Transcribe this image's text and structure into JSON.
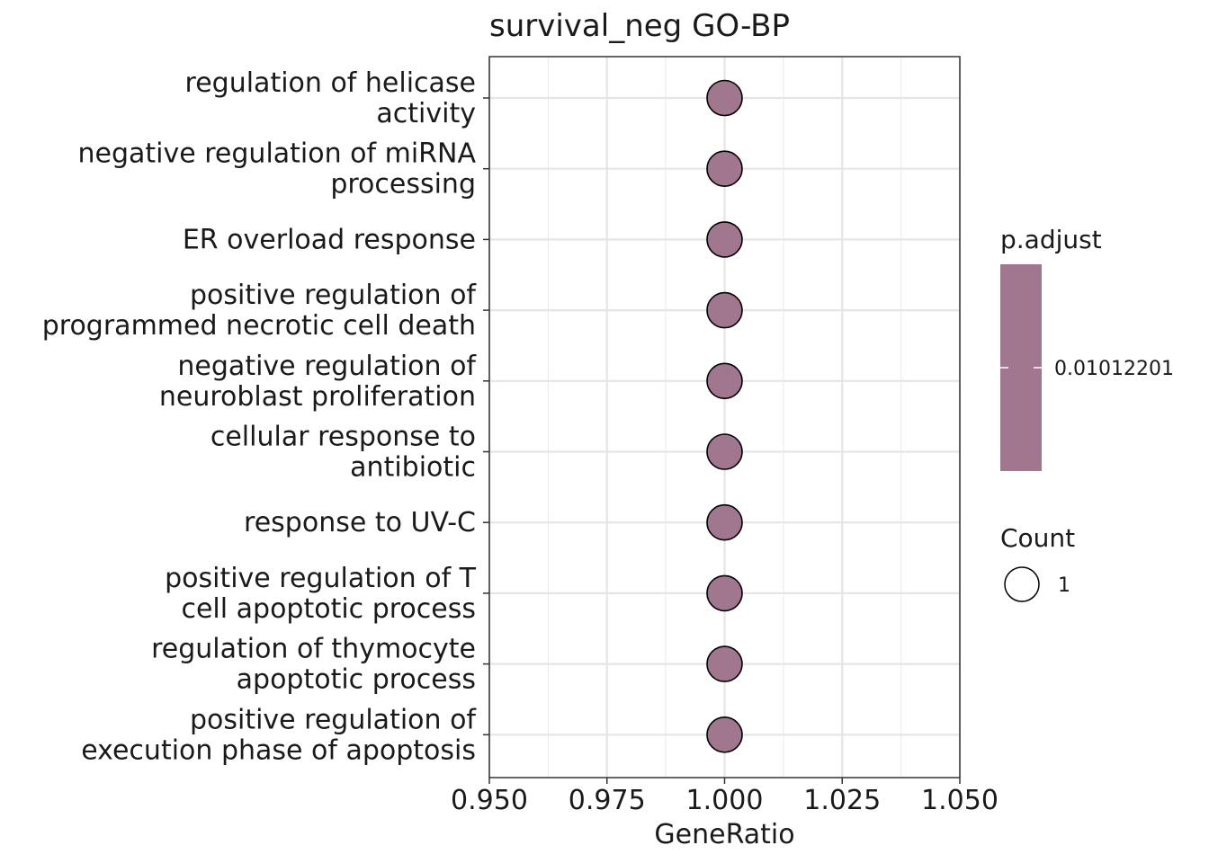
{
  "chart_data": {
    "type": "scatter",
    "title": "survival_neg GO-BP",
    "xlabel": "GeneRatio",
    "ylabel": "",
    "xlim": [
      0.95,
      1.05
    ],
    "x_ticks": [
      0.95,
      0.975,
      1.0,
      1.025,
      1.05
    ],
    "x_tick_labels": [
      "0.950",
      "0.975",
      "1.000",
      "1.025",
      "1.050"
    ],
    "grid": true,
    "legend_position": "right",
    "categories": [
      [
        "regulation of helicase",
        "activity"
      ],
      [
        "negative regulation of miRNA",
        "processing"
      ],
      [
        "ER overload response"
      ],
      [
        "positive regulation of",
        "programmed necrotic cell death"
      ],
      [
        "negative regulation of",
        "neuroblast proliferation"
      ],
      [
        "cellular response to",
        "antibiotic"
      ],
      [
        "response to UV-C"
      ],
      [
        "positive regulation of T",
        "cell apoptotic process"
      ],
      [
        "regulation of thymocyte",
        "apoptotic process"
      ],
      [
        "positive regulation of",
        "execution phase of apoptosis"
      ]
    ],
    "points": [
      {
        "x": 1.0,
        "count": 1,
        "p_adjust": 0.01012201
      },
      {
        "x": 1.0,
        "count": 1,
        "p_adjust": 0.01012201
      },
      {
        "x": 1.0,
        "count": 1,
        "p_adjust": 0.01012201
      },
      {
        "x": 1.0,
        "count": 1,
        "p_adjust": 0.01012201
      },
      {
        "x": 1.0,
        "count": 1,
        "p_adjust": 0.01012201
      },
      {
        "x": 1.0,
        "count": 1,
        "p_adjust": 0.01012201
      },
      {
        "x": 1.0,
        "count": 1,
        "p_adjust": 0.01012201
      },
      {
        "x": 1.0,
        "count": 1,
        "p_adjust": 0.01012201
      },
      {
        "x": 1.0,
        "count": 1,
        "p_adjust": 0.01012201
      },
      {
        "x": 1.0,
        "count": 1,
        "p_adjust": 0.01012201
      }
    ],
    "point_color": "#a1768f",
    "legend": {
      "color": {
        "title": "p.adjust",
        "label": "0.01012201",
        "color": "#a1768f"
      },
      "size": {
        "title": "Count",
        "label": "1"
      }
    }
  }
}
